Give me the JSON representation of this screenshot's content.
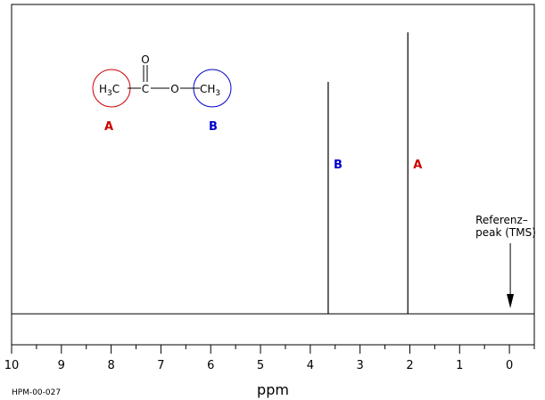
{
  "chart_data": {
    "type": "spectrum",
    "x_label": "ppm",
    "code": "HPM-00-027",
    "xlim": [
      10,
      -0.5
    ],
    "ylim": [
      -10,
      100
    ],
    "xticks": [
      10,
      9,
      8,
      7,
      6,
      5,
      4,
      3,
      2,
      1,
      0
    ],
    "xminorticks": [
      9.5,
      8.5,
      7.5,
      6.5,
      5.5,
      4.5,
      3.5,
      2.5,
      1.5,
      0.5,
      -0.5
    ],
    "peaks": {
      "x": [
        3.64,
        2.04
      ],
      "values": [
        75,
        91
      ],
      "labels": [
        "B",
        "A"
      ],
      "label_colors": [
        "#0000cc",
        "#cc0000"
      ],
      "color": "#000000"
    },
    "annotation": {
      "lines": [
        "Referenz–",
        "peak (TMS)"
      ],
      "x": 0
    },
    "molecule": {
      "left": [
        "H",
        "3",
        "C"
      ],
      "carbonyl_c": "C",
      "carbonyl_o": "O",
      "ester_o": "O",
      "right": [
        "CH",
        "3"
      ],
      "labels": [
        "A",
        "B"
      ]
    }
  }
}
